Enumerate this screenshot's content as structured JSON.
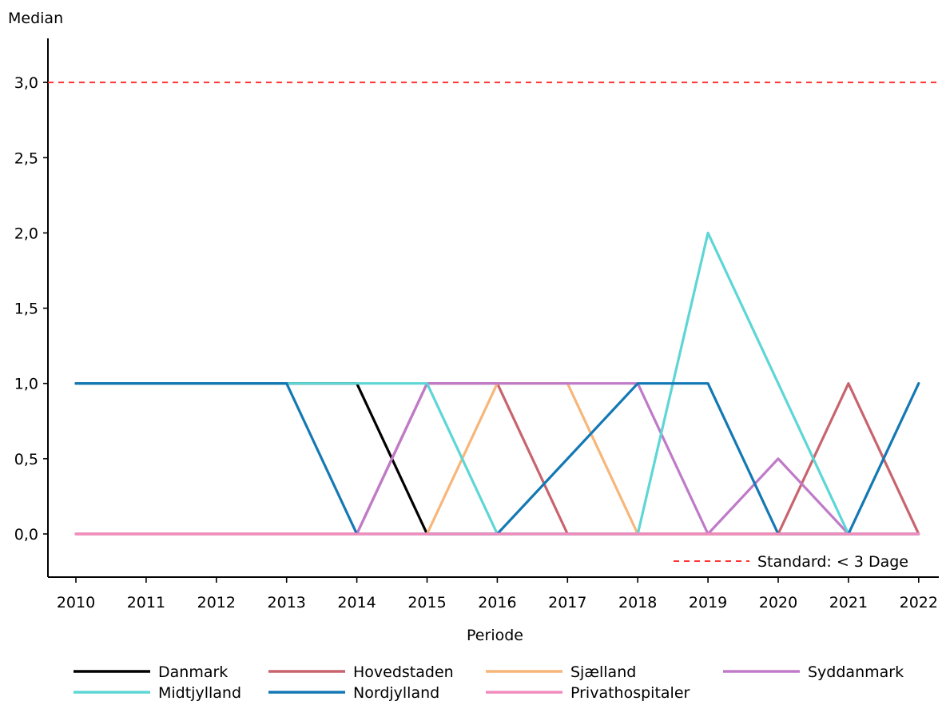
{
  "chart_data": {
    "type": "line",
    "title": "",
    "ylabel": "Median",
    "xlabel": "Periode",
    "x": [
      2010,
      2011,
      2012,
      2013,
      2014,
      2015,
      2016,
      2017,
      2018,
      2019,
      2020,
      2021,
      2022
    ],
    "xlim": [
      2009.6,
      2022.3
    ],
    "ylim": [
      -0.3,
      3.25
    ],
    "yticks": [
      0.0,
      0.5,
      1.0,
      1.5,
      2.0,
      2.5,
      3.0
    ],
    "ytick_labels": [
      "0,0",
      "0,5",
      "1,0",
      "1,5",
      "2,0",
      "2,5",
      "3,0"
    ],
    "grid": false,
    "legend_placement": "bottom",
    "standard": {
      "value": 3.0,
      "label": "Standard: < 3 Dage",
      "color": "#ff3333",
      "style": "dashed"
    },
    "series": [
      {
        "name": "Danmark",
        "color": "#000000",
        "values": [
          1,
          1,
          1,
          1,
          1,
          0,
          0,
          0,
          0,
          0,
          0,
          0,
          0
        ]
      },
      {
        "name": "Hovedstaden",
        "color": "#c8646e",
        "values": [
          0,
          0,
          0,
          0,
          0,
          1,
          1,
          0,
          0,
          0,
          0,
          1,
          0
        ]
      },
      {
        "name": "Sjælland",
        "color": "#f7b67a",
        "values": [
          0,
          0,
          0,
          0,
          0,
          0,
          1,
          1,
          0,
          0,
          0,
          0,
          0
        ]
      },
      {
        "name": "Syddanmark",
        "color": "#bf7ac8",
        "values": [
          0,
          0,
          0,
          0,
          0,
          1,
          1,
          1,
          1,
          0,
          0.5,
          0,
          0
        ]
      },
      {
        "name": "Midtjylland",
        "color": "#5ed6d6",
        "values": [
          1,
          1,
          1,
          1,
          1,
          1,
          0,
          0,
          0,
          2,
          1,
          0,
          0
        ]
      },
      {
        "name": "Nordjylland",
        "color": "#1478b4",
        "values": [
          1,
          1,
          1,
          1,
          0,
          0,
          0,
          0.5,
          1,
          1,
          0,
          0,
          1
        ]
      },
      {
        "name": "Privathospitaler",
        "color": "#f28cbe",
        "values": [
          0,
          0,
          0,
          0,
          0,
          0,
          0,
          0,
          0,
          0,
          0,
          0,
          0
        ]
      }
    ]
  }
}
